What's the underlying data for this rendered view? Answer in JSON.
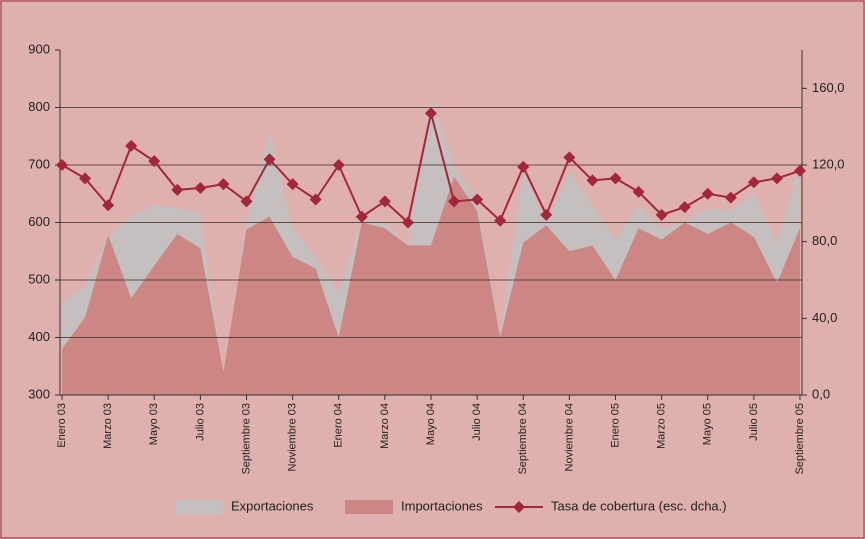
{
  "chart_data": {
    "type": "area-line",
    "categories": [
      "Enero 03",
      null,
      "Marzo 03",
      null,
      "Mayo 03",
      null,
      "Julio 03",
      null,
      "Septiembre 03",
      null,
      "Noviembre 03",
      null,
      "Enero 04",
      null,
      "Marzo 04",
      null,
      "Mayo 04",
      null,
      "Julio 04",
      null,
      "Septiembre 04",
      null,
      "Noviembre 04",
      null,
      "Enero 05",
      null,
      "Marzo 05",
      null,
      "Mayo 05",
      null,
      "Julio 05",
      null,
      "Septiembre 05"
    ],
    "series": [
      {
        "name": "Exportaciones",
        "type": "area",
        "color": "#c5bfbf",
        "values": [
          460,
          490,
          575,
          610,
          630,
          625,
          615,
          330,
          600,
          760,
          590,
          540,
          480,
          605,
          600,
          560,
          820,
          700,
          640,
          400,
          690,
          600,
          690,
          630,
          570,
          630,
          590,
          600,
          625,
          620,
          650,
          565,
          700
        ]
      },
      {
        "name": "Importaciones",
        "type": "area",
        "color": "#cc8683",
        "values": [
          380,
          435,
          578,
          468,
          525,
          580,
          555,
          340,
          588,
          610,
          540,
          520,
          400,
          600,
          590,
          560,
          560,
          680,
          620,
          400,
          565,
          595,
          550,
          560,
          500,
          590,
          570,
          600,
          580,
          600,
          575,
          495,
          590
        ]
      },
      {
        "name": "Tasa de cobertura (esc. dcha.)",
        "type": "line",
        "axis": "y2",
        "color": "#a3263a",
        "values": [
          120,
          113,
          99,
          130,
          122,
          107,
          108,
          110,
          101,
          123,
          110,
          102,
          120,
          93,
          101,
          90,
          147,
          101,
          102,
          91,
          119,
          94,
          124,
          112,
          113,
          106,
          94,
          98,
          105,
          103,
          111,
          113,
          117
        ]
      }
    ],
    "ylim": [
      300,
      900
    ],
    "yticks": [
      300,
      400,
      500,
      600,
      700,
      800,
      900
    ],
    "y2lim": [
      0,
      180
    ],
    "y2ticks": [
      {
        "value": 0,
        "label": "0,0"
      },
      {
        "value": 40,
        "label": "40,0"
      },
      {
        "value": 80,
        "label": "80,0"
      },
      {
        "value": 120,
        "label": "120,0"
      },
      {
        "value": 160,
        "label": "160,0"
      }
    ],
    "grid": true,
    "legend": "bottom"
  }
}
